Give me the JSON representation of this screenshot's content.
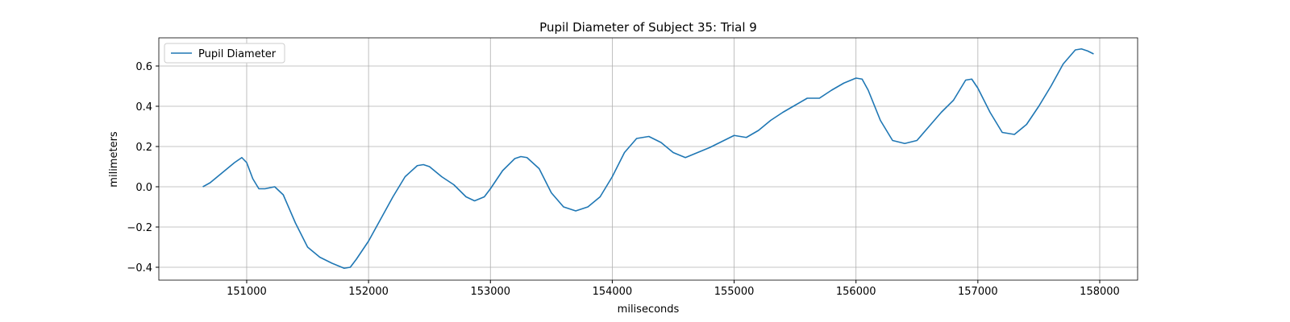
{
  "chart_data": {
    "type": "line",
    "title": "Pupil Diameter of Subject 35: Trial 9",
    "xlabel": "miliseconds",
    "ylabel": "milimeters",
    "x": [
      150640,
      150700,
      150800,
      150900,
      150960,
      151000,
      151050,
      151100,
      151150,
      151230,
      151300,
      151400,
      151500,
      151600,
      151700,
      151800,
      151850,
      151900,
      152000,
      152100,
      152200,
      152300,
      152400,
      152450,
      152500,
      152600,
      152700,
      152800,
      152870,
      152950,
      153000,
      153100,
      153200,
      153250,
      153300,
      153400,
      153500,
      153600,
      153700,
      153800,
      153900,
      154000,
      154100,
      154200,
      154300,
      154400,
      154500,
      154600,
      154700,
      154800,
      154900,
      155000,
      155100,
      155200,
      155300,
      155400,
      155500,
      155600,
      155700,
      155800,
      155900,
      156000,
      156050,
      156100,
      156200,
      156300,
      156400,
      156500,
      156600,
      156700,
      156800,
      156900,
      156950,
      157000,
      157100,
      157200,
      157300,
      157400,
      157500,
      157600,
      157700,
      157800,
      157850,
      157900,
      157950
    ],
    "series": [
      {
        "name": "Pupil Diameter",
        "color": "#1f77b4",
        "values": [
          0.0,
          0.02,
          0.07,
          0.12,
          0.145,
          0.12,
          0.04,
          -0.01,
          -0.01,
          0.0,
          -0.04,
          -0.18,
          -0.3,
          -0.35,
          -0.38,
          -0.405,
          -0.4,
          -0.36,
          -0.27,
          -0.16,
          -0.05,
          0.05,
          0.105,
          0.11,
          0.1,
          0.05,
          0.01,
          -0.05,
          -0.07,
          -0.05,
          -0.01,
          0.08,
          0.14,
          0.15,
          0.145,
          0.09,
          -0.03,
          -0.1,
          -0.12,
          -0.1,
          -0.05,
          0.05,
          0.17,
          0.24,
          0.25,
          0.22,
          0.17,
          0.145,
          0.17,
          0.195,
          0.225,
          0.255,
          0.245,
          0.28,
          0.33,
          0.37,
          0.405,
          0.44,
          0.44,
          0.48,
          0.515,
          0.54,
          0.535,
          0.48,
          0.33,
          0.23,
          0.215,
          0.23,
          0.3,
          0.37,
          0.43,
          0.53,
          0.535,
          0.49,
          0.37,
          0.27,
          0.26,
          0.31,
          0.4,
          0.5,
          0.61,
          0.68,
          0.685,
          0.675,
          0.66
        ]
      }
    ],
    "xlim": [
      150279,
      158311
    ],
    "xticks": [
      151000,
      152000,
      153000,
      154000,
      155000,
      156000,
      157000,
      158000
    ],
    "ylim": [
      -0.464,
      0.74
    ],
    "yticks": [
      {
        "value": -0.4,
        "label": "−0.4"
      },
      {
        "value": -0.2,
        "label": "−0.2"
      },
      {
        "value": 0,
        "label": "0.0"
      },
      0.2,
      0.4,
      0.6
    ],
    "grid": true,
    "legend": "upper left"
  }
}
